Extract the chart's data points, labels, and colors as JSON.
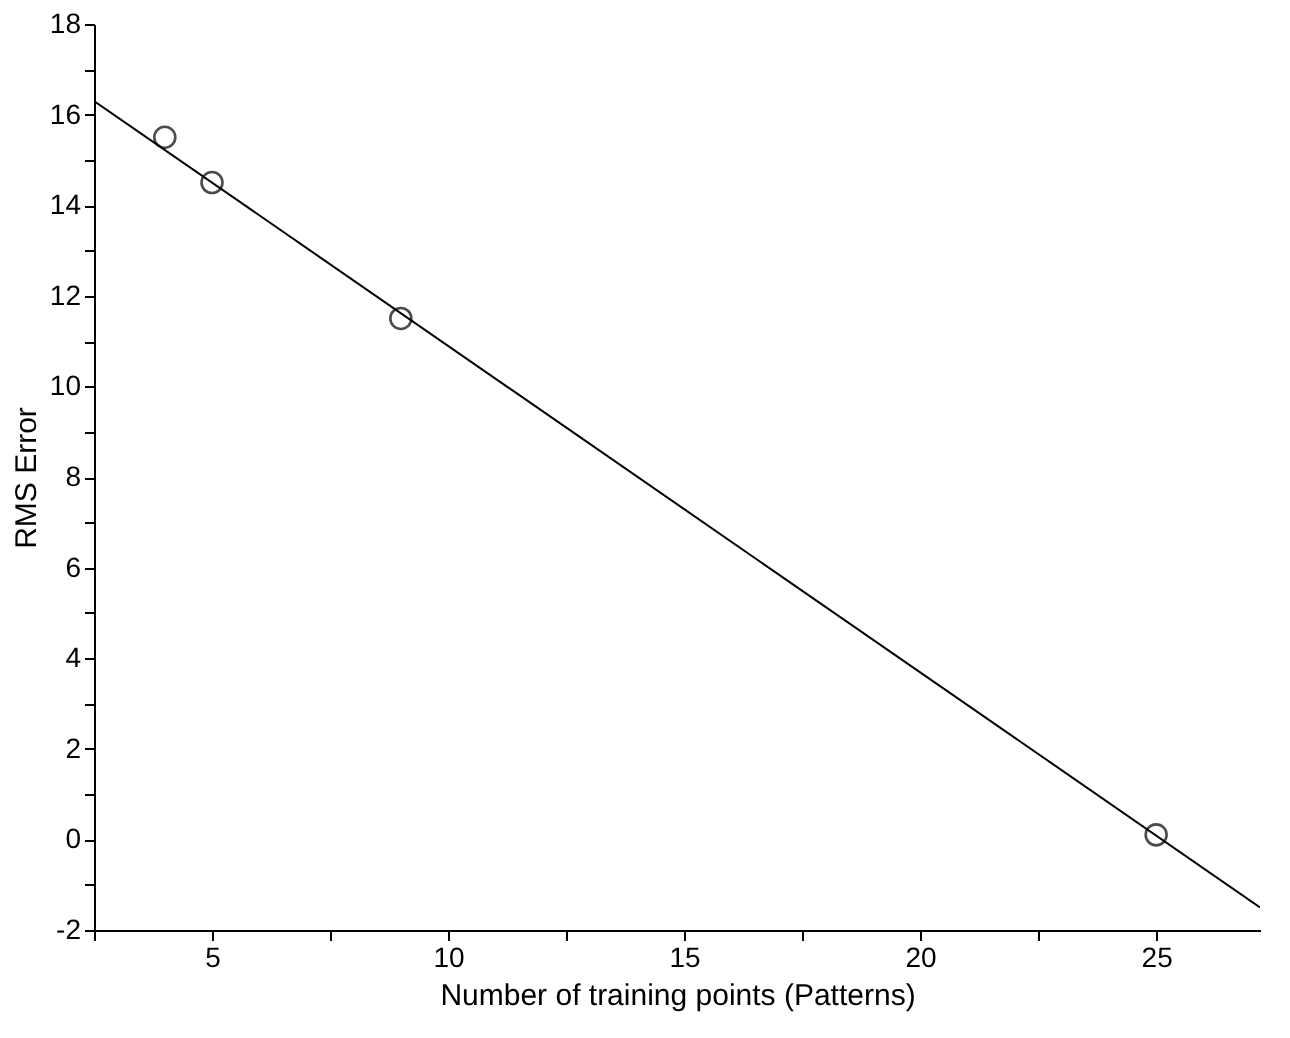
{
  "chart_data": {
    "type": "scatter",
    "xlabel": "Number of training points (Patterns)",
    "ylabel": "RMS Error",
    "xlim": [
      2.5,
      27.2
    ],
    "ylim": [
      -2,
      18
    ],
    "xticks": [
      {
        "value": 2.5,
        "label": null
      },
      5,
      {
        "value": 7.5,
        "label": null
      },
      10,
      {
        "value": 12.5,
        "label": null
      },
      15,
      {
        "value": 17.5,
        "label": null
      },
      20,
      {
        "value": 22.5,
        "label": null
      },
      25
    ],
    "yticks": [
      -2,
      {
        "value": -1,
        "label": null
      },
      0,
      {
        "value": 1,
        "label": null
      },
      2,
      {
        "value": 3,
        "label": null
      },
      4,
      {
        "value": 5,
        "label": null
      },
      6,
      {
        "value": 7,
        "label": null
      },
      8,
      {
        "value": 9,
        "label": null
      },
      10,
      {
        "value": 11,
        "label": null
      },
      12,
      {
        "value": 13,
        "label": null
      },
      14,
      {
        "value": 15,
        "label": null
      },
      16,
      {
        "value": 17,
        "label": null
      },
      18
    ],
    "grid": false,
    "series": [
      {
        "color": "#000000",
        "marker": "circle",
        "x": [
          4,
          5,
          9,
          25
        ],
        "values": [
          15.5,
          14.5,
          11.5,
          0.1
        ]
      },
      {
        "type": "line",
        "color": "#000000",
        "line_style": "solid",
        "x": [
          2.5,
          27.2
        ],
        "values": [
          16.3,
          -1.5
        ]
      }
    ]
  }
}
